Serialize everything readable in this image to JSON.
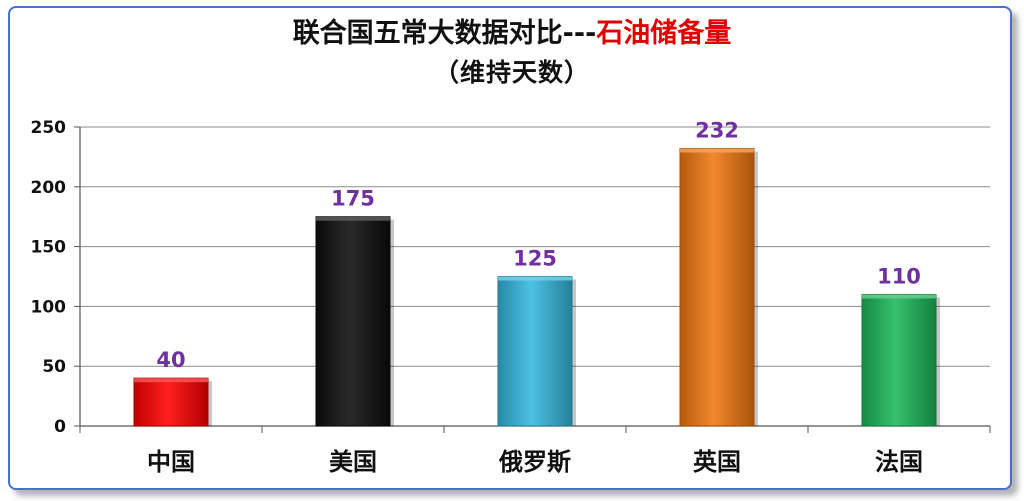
{
  "chart_data": {
    "type": "bar",
    "title_main": "联合国五常大数据对比---",
    "title_highlight": "石油储备量",
    "subtitle": "（维持天数）",
    "categories": [
      "中国",
      "美国",
      "俄罗斯",
      "英国",
      "法国"
    ],
    "values": [
      40,
      175,
      125,
      232,
      110
    ],
    "data_labels": [
      "40",
      "175",
      "125",
      "232",
      "110"
    ],
    "bar_colors": [
      "#ff0000",
      "#0d0d0d",
      "#35b8de",
      "#f07812",
      "#1cb85a"
    ],
    "ylim": [
      0,
      250
    ],
    "yticks": [
      0,
      50,
      100,
      150,
      200,
      250
    ],
    "grid": true,
    "label_color": "#7030a0"
  }
}
